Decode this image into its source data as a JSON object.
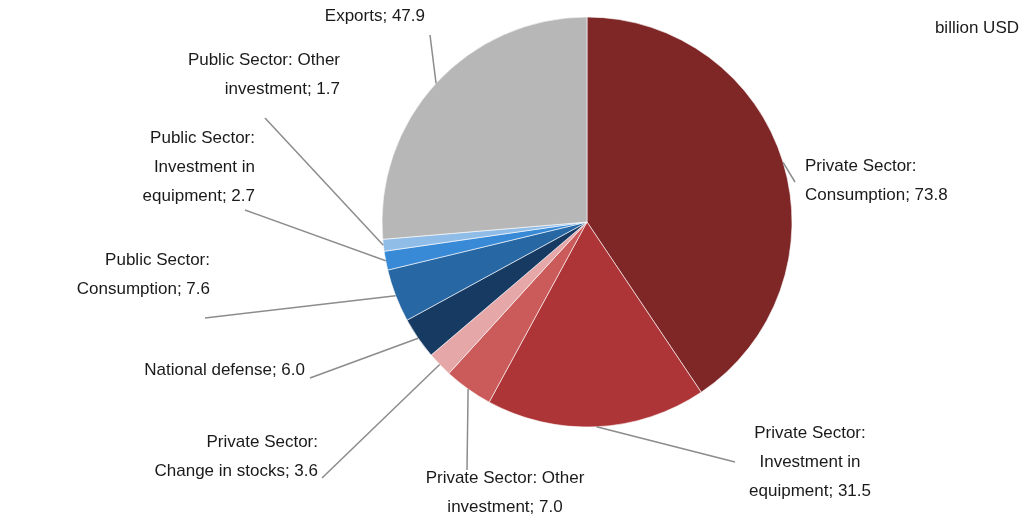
{
  "chart_data": {
    "type": "pie",
    "categories": [
      "Private Sector: Consumption",
      "Private Sector: Investment in equipment",
      "Private Sector: Other investment",
      "Private Sector: Change in stocks",
      "National defense",
      "Public Sector: Consumption",
      "Public Sector: Investment in equipment",
      "Public Sector: Other investment",
      "Exports"
    ],
    "values": [
      73.8,
      31.5,
      7.0,
      3.6,
      6.0,
      7.6,
      2.7,
      1.7,
      47.9
    ],
    "value_labels": [
      "73.8",
      "31.5",
      "7.0",
      "3.6",
      "6.0",
      "7.6",
      "2.7",
      "1.7",
      "47.9"
    ],
    "colors": [
      "#7f2627",
      "#ae3537",
      "#cb5b5a",
      "#e6a7a8",
      "#173a63",
      "#2767a4",
      "#3889d6",
      "#8fbde8",
      "#b7b7b7"
    ],
    "annotations": [
      "billion USD"
    ]
  }
}
